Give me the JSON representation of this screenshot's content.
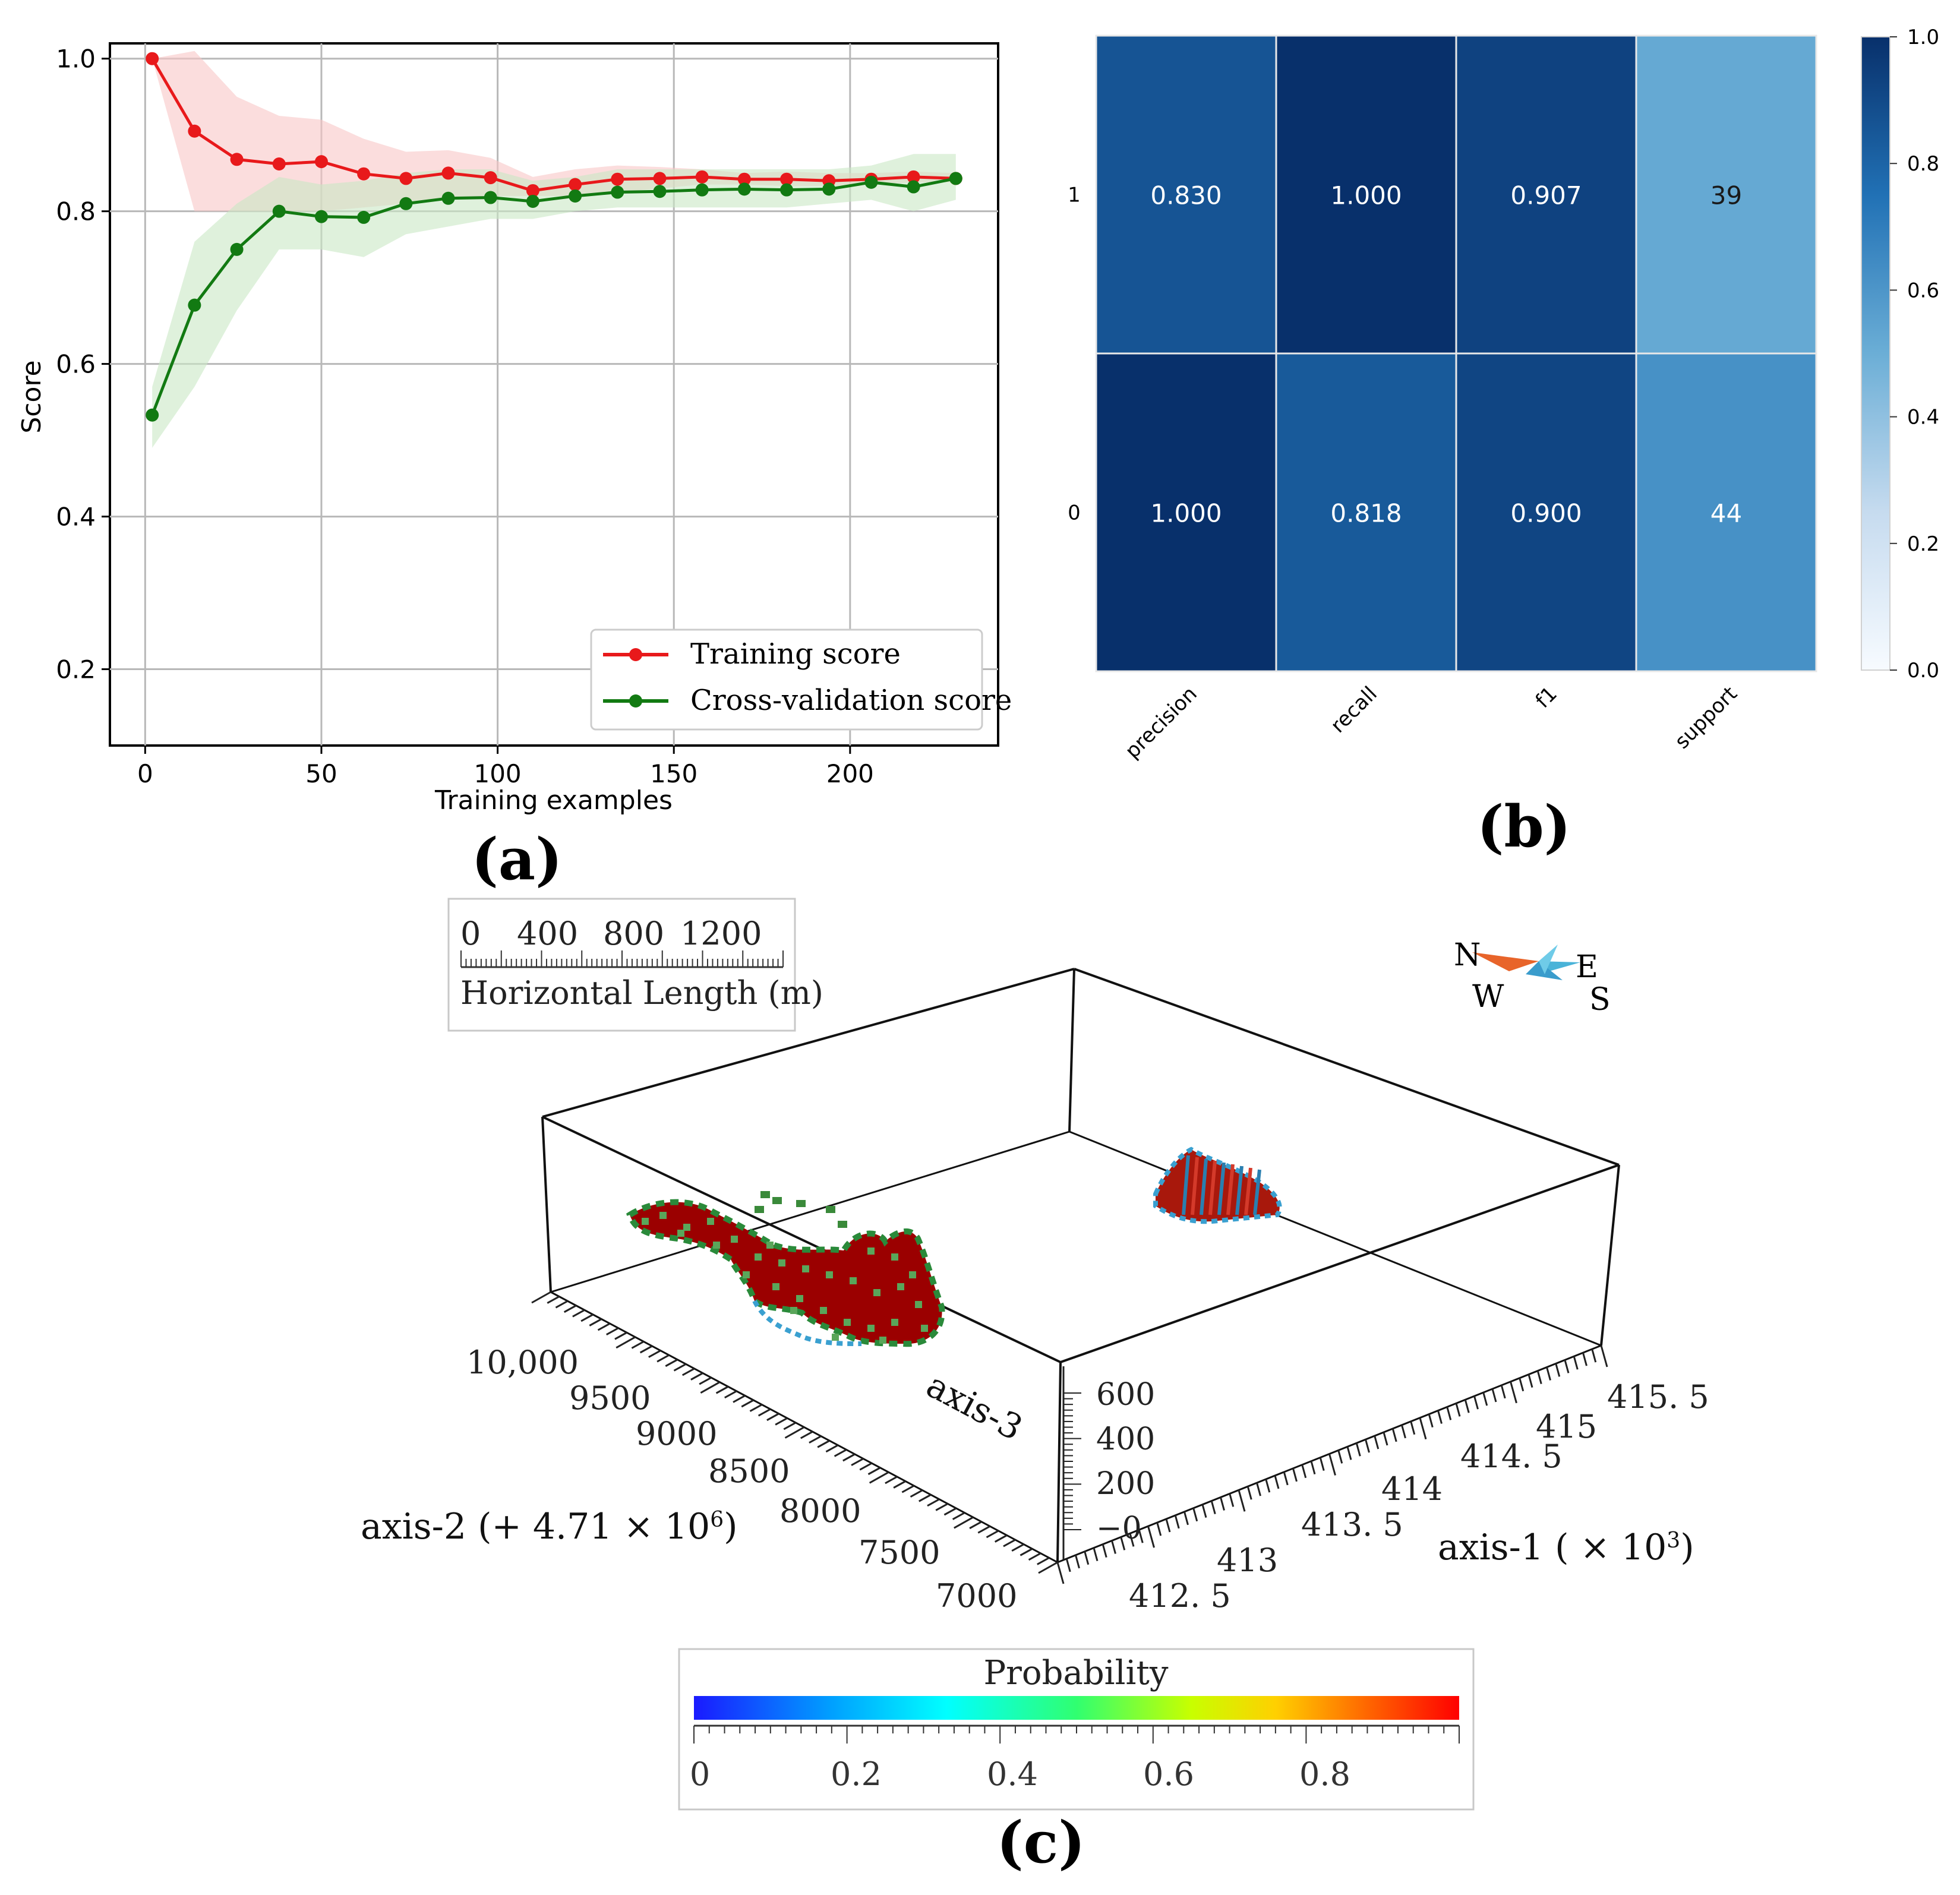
{
  "panel_labels": {
    "a": "(a)",
    "b": "(b)",
    "c": "(c)"
  },
  "colors": {
    "training": "#e8191b",
    "training_band": "#f9c6c6",
    "cv": "#127a12",
    "cv_band": "#c9e7c5",
    "grid": "#b8b8b8",
    "heat_dark": "#08306b",
    "heat_light": "#f7fbff",
    "body_red": "#9b0000",
    "compass_orange": "#e8642a",
    "compass_cyan": "#4ab3d8"
  },
  "chart_data": [
    {
      "id": "a",
      "type": "line",
      "xlabel": "Training examples",
      "ylabel": "Score",
      "xlim": [
        -10,
        242
      ],
      "ylim": [
        0.1,
        1.02
      ],
      "xticks": [
        0,
        50,
        100,
        150,
        200
      ],
      "yticks": [
        0.2,
        0.4,
        0.6,
        0.8,
        1.0
      ],
      "ytick_labels": [
        "0.2",
        "0.4",
        "0.6",
        "0.8",
        "1.0"
      ],
      "grid": true,
      "legend_position": "lower-right",
      "x": [
        2,
        14,
        26,
        38,
        50,
        62,
        74,
        86,
        98,
        110,
        122,
        134,
        146,
        158,
        170,
        182,
        194,
        206,
        218,
        230
      ],
      "series": [
        {
          "name": "Training score",
          "values": [
            1.0,
            0.905,
            0.868,
            0.862,
            0.865,
            0.849,
            0.843,
            0.85,
            0.844,
            0.827,
            0.835,
            0.842,
            0.843,
            0.845,
            0.842,
            0.842,
            0.84,
            0.842,
            0.845,
            0.843
          ],
          "band_low": [
            1.0,
            0.8,
            0.8,
            0.8,
            0.8,
            0.805,
            0.81,
            0.815,
            0.82,
            0.82,
            0.82,
            0.825,
            0.83,
            0.835,
            0.835,
            0.833,
            0.833,
            0.835,
            0.838,
            0.838
          ],
          "band_high": [
            1.0,
            1.01,
            0.95,
            0.925,
            0.92,
            0.895,
            0.878,
            0.88,
            0.87,
            0.845,
            0.855,
            0.86,
            0.858,
            0.855,
            0.85,
            0.852,
            0.85,
            0.85,
            0.852,
            0.85
          ]
        },
        {
          "name": "Cross-validation score",
          "values": [
            0.533,
            0.677,
            0.75,
            0.8,
            0.793,
            0.792,
            0.81,
            0.817,
            0.818,
            0.813,
            0.82,
            0.825,
            0.826,
            0.828,
            0.829,
            0.828,
            0.829,
            0.838,
            0.832,
            0.843
          ],
          "band_low": [
            0.49,
            0.57,
            0.67,
            0.75,
            0.75,
            0.74,
            0.77,
            0.78,
            0.79,
            0.79,
            0.8,
            0.805,
            0.805,
            0.805,
            0.805,
            0.805,
            0.81,
            0.815,
            0.8,
            0.815
          ],
          "band_high": [
            0.57,
            0.76,
            0.81,
            0.845,
            0.835,
            0.84,
            0.85,
            0.855,
            0.855,
            0.84,
            0.845,
            0.855,
            0.855,
            0.855,
            0.855,
            0.855,
            0.855,
            0.86,
            0.875,
            0.875
          ]
        }
      ]
    },
    {
      "id": "b",
      "type": "heatmap",
      "rows": [
        "1",
        "0"
      ],
      "columns": [
        "precision",
        "recall",
        "f1",
        "support"
      ],
      "values": [
        [
          0.83,
          1.0,
          0.907,
          39
        ],
        [
          1.0,
          0.818,
          0.9,
          44
        ]
      ],
      "labels": [
        [
          "0.830",
          "1.000",
          "0.907",
          "39"
        ],
        [
          "1.000",
          "0.818",
          "0.900",
          "44"
        ]
      ],
      "color_values": [
        [
          0.86,
          1.0,
          0.93,
          0.52
        ],
        [
          1.0,
          0.84,
          0.92,
          0.62
        ]
      ],
      "colorbar_ticks": [
        "0.0",
        "0.2",
        "0.4",
        "0.6",
        "0.8",
        "1.0"
      ],
      "colorbar_range": [
        0,
        1
      ]
    }
  ],
  "scene": {
    "scale_bar": {
      "ticks": [
        "0",
        "400",
        "800",
        "1200"
      ],
      "label": "Horizontal Length (m)"
    },
    "compass": {
      "n": "N",
      "e": "E",
      "w": "W",
      "s": "S"
    },
    "axis2": {
      "label": "axis-2 (+ 4.71 × 10",
      "sup": "6",
      "close": ")",
      "ticks": [
        "10,000",
        "9500",
        "9000",
        "8500",
        "8000",
        "7500",
        "7000"
      ]
    },
    "axis1": {
      "label": "axis-1 ( × 10",
      "sup": "3",
      "close": ")",
      "ticks": [
        "412. 5",
        "413",
        "413. 5",
        "414",
        "414. 5",
        "415",
        "415. 5"
      ]
    },
    "axis3": {
      "label": "axis-3",
      "ticks": [
        "−0",
        "200",
        "400",
        "600"
      ]
    },
    "colorbar": {
      "title": "Probability",
      "ticks": [
        "0",
        "0.2",
        "0.4",
        "0.6",
        "0.8"
      ]
    }
  }
}
